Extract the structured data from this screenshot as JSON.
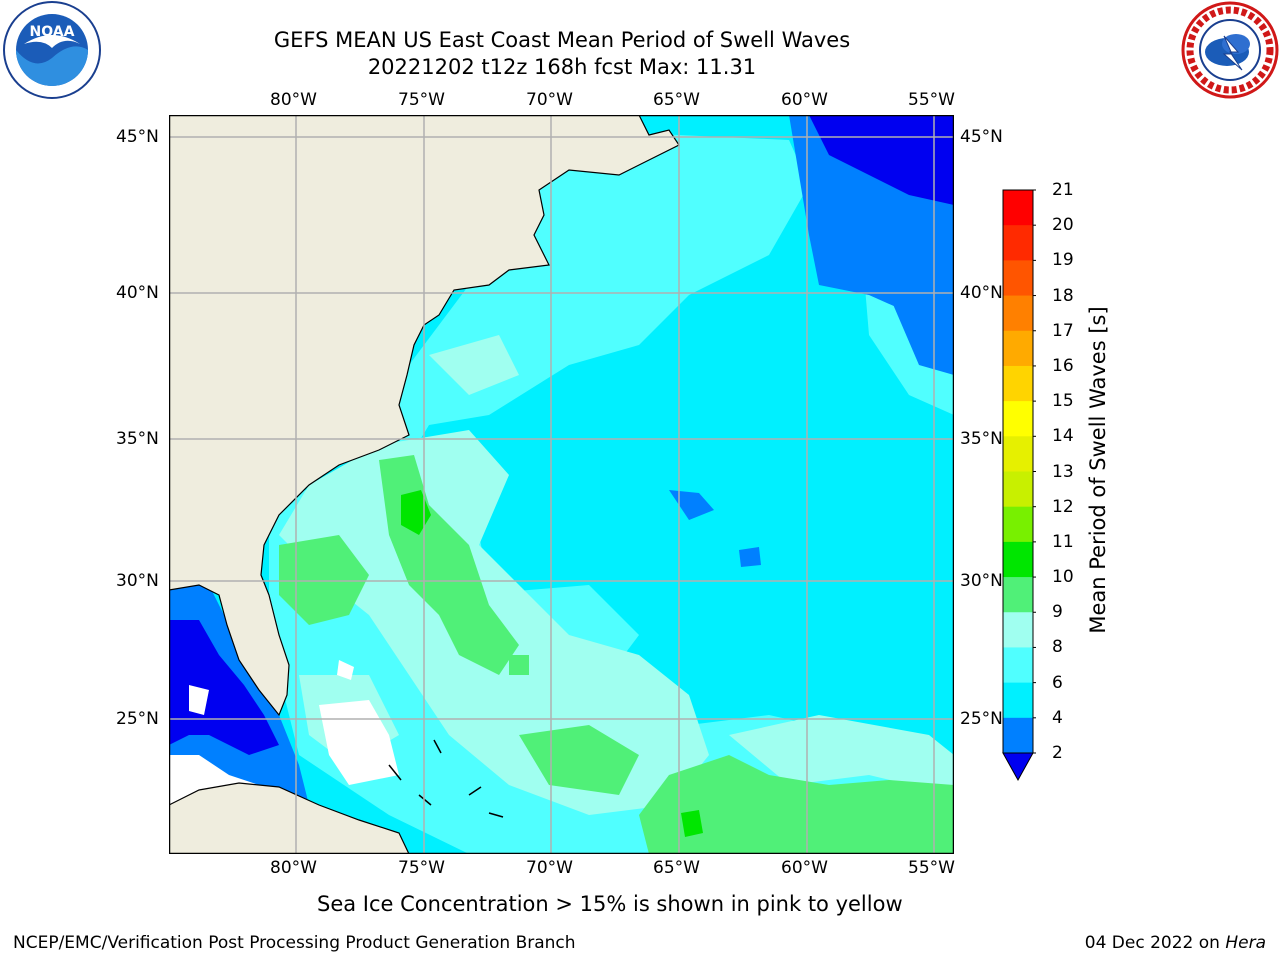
{
  "title": {
    "line1": "GEFS MEAN US East Coast Mean Period of Swell Waves",
    "line2": "20221202 t12z 168h fcst   Max: 11.31"
  },
  "logos": {
    "left": "noaa-logo",
    "right": "nws-logo"
  },
  "map": {
    "projection": "PlateCarree",
    "lon_range": [
      -85,
      -54.5
    ],
    "lat_range": [
      20.4,
      45.8
    ],
    "lon_ticks": [
      "80°W",
      "75°W",
      "70°W",
      "65°W",
      "60°W",
      "55°W"
    ],
    "lat_ticks": [
      "45°N",
      "40°N",
      "35°N",
      "30°N",
      "25°N"
    ],
    "gridlines": true,
    "colors": {
      "land": "#efedde",
      "gridline": "#b0b0b0",
      "coast": "#000000"
    }
  },
  "colorbar": {
    "label": "Mean Period of Swell Waves [s]",
    "ticks": [
      "21",
      "20",
      "19",
      "18",
      "17",
      "16",
      "15",
      "14",
      "13",
      "12",
      "11",
      "10",
      "9",
      "8",
      "6",
      "4",
      "2"
    ],
    "bins": [
      {
        "range": "20-21",
        "color": "#ff0000"
      },
      {
        "range": "19-20",
        "color": "#ff2a00"
      },
      {
        "range": "18-19",
        "color": "#ff5500"
      },
      {
        "range": "17-18",
        "color": "#ff8000"
      },
      {
        "range": "16-17",
        "color": "#ffaa00"
      },
      {
        "range": "15-16",
        "color": "#ffd400"
      },
      {
        "range": "14-15",
        "color": "#ffff00"
      },
      {
        "range": "13-14",
        "color": "#e6f000"
      },
      {
        "range": "12-13",
        "color": "#c8f000"
      },
      {
        "range": "11-12",
        "color": "#78f000"
      },
      {
        "range": "10-11",
        "color": "#00e600"
      },
      {
        "range": "9-10",
        "color": "#50f078"
      },
      {
        "range": "8-9",
        "color": "#a0fff0"
      },
      {
        "range": "6-8",
        "color": "#50ffff"
      },
      {
        "range": "4-6",
        "color": "#00f0ff"
      },
      {
        "range": "2-4",
        "color": "#0080ff"
      },
      {
        "range": "<2",
        "color": "#0000f0"
      }
    ]
  },
  "footnote": "Sea Ice Concentration > 15% is shown in pink to yellow",
  "credit": "NCEP/EMC/Verification Post Processing Product Generation Branch",
  "date": {
    "text": "04 Dec 2022 on ",
    "host": "Hera"
  }
}
